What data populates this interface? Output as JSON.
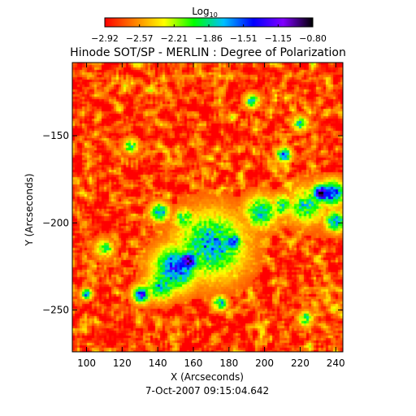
{
  "chart_data": {
    "type": "heatmap",
    "title": "Hinode SOT/SP - MERLIN : Degree of Polarization",
    "xlabel": "X (Arcseconds)",
    "ylabel": "Y (Arcseconds)",
    "timestamp": "7-Oct-2007 09:15:04.642",
    "xlim": [
      92,
      244
    ],
    "ylim": [
      -274,
      -108
    ],
    "x_ticks": [
      100,
      120,
      140,
      160,
      180,
      200,
      220,
      240
    ],
    "y_ticks": [
      -150,
      -200,
      -250
    ],
    "colorbar": {
      "label": "Log",
      "label_subscript": "10",
      "range": [
        -2.92,
        -0.8
      ],
      "ticks": [
        "-2.92",
        "-2.57",
        "-2.21",
        "-1.86",
        "-1.51",
        "-1.15",
        "-0.80"
      ],
      "colors": [
        "#ff0000",
        "#ff8000",
        "#ffff00",
        "#00ff00",
        "#00c0ff",
        "#0000ff",
        "#8000ff",
        "#000000"
      ]
    },
    "features": [
      {
        "x": 157,
        "y": -222,
        "value": -0.95,
        "radius": 6
      },
      {
        "x": 150,
        "y": -226,
        "value": -1.45,
        "radius": 12
      },
      {
        "x": 170,
        "y": -213,
        "value": -1.7,
        "radius": 18
      },
      {
        "x": 182,
        "y": -211,
        "value": -1.35,
        "radius": 5
      },
      {
        "x": 142,
        "y": -236,
        "value": -1.7,
        "radius": 8
      },
      {
        "x": 131,
        "y": -241,
        "value": -1.45,
        "radius": 5
      },
      {
        "x": 232,
        "y": -183,
        "value": -0.9,
        "radius": 5
      },
      {
        "x": 238,
        "y": -183,
        "value": -1.4,
        "radius": 7
      },
      {
        "x": 224,
        "y": -190,
        "value": -1.9,
        "radius": 10
      },
      {
        "x": 240,
        "y": -199,
        "value": -1.7,
        "radius": 6
      },
      {
        "x": 198,
        "y": -194,
        "value": -1.8,
        "radius": 9
      },
      {
        "x": 210,
        "y": -190,
        "value": -1.9,
        "radius": 6
      },
      {
        "x": 211,
        "y": -161,
        "value": -1.5,
        "radius": 4
      },
      {
        "x": 141,
        "y": -194,
        "value": -1.6,
        "radius": 5
      },
      {
        "x": 155,
        "y": -198,
        "value": -1.9,
        "radius": 6
      },
      {
        "x": 100,
        "y": -241,
        "value": -1.6,
        "radius": 3
      },
      {
        "x": 193,
        "y": -130,
        "value": -1.85,
        "radius": 4
      },
      {
        "x": 220,
        "y": -143,
        "value": -1.85,
        "radius": 4
      },
      {
        "x": 125,
        "y": -156,
        "value": -1.9,
        "radius": 4
      },
      {
        "x": 175,
        "y": -246,
        "value": -1.75,
        "radius": 4
      },
      {
        "x": 223,
        "y": -255,
        "value": -1.9,
        "radius": 4
      },
      {
        "x": 110,
        "y": -215,
        "value": -2.0,
        "radius": 5
      }
    ],
    "background_value": -2.75
  }
}
